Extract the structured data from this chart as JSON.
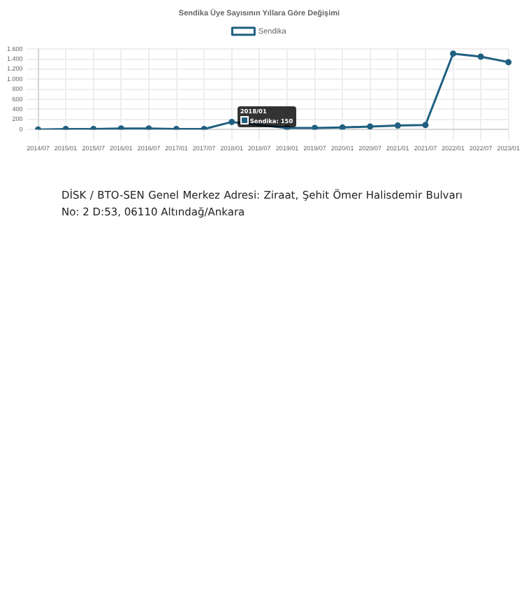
{
  "chart_data": {
    "type": "line",
    "title": "Sendika Üye Sayısının Yıllara Göre Değişimi",
    "categories": [
      "2014/07",
      "2015/01",
      "2015/07",
      "2016/01",
      "2016/07",
      "2017/01",
      "2017/07",
      "2018/01",
      "2018/07",
      "2019/01",
      "2019/07",
      "2020/01",
      "2020/07",
      "2021/01",
      "2021/07",
      "2022/01",
      "2022/07",
      "2023/01"
    ],
    "series": [
      {
        "name": "Sendika",
        "color": "#1f5f80",
        "values": [
          0,
          10,
          10,
          20,
          20,
          10,
          10,
          150,
          null,
          30,
          30,
          40,
          60,
          80,
          90,
          1510,
          1450,
          1340
        ]
      }
    ],
    "ylim": [
      0,
      1600
    ],
    "yticks": [
      0,
      200,
      400,
      600,
      800,
      {
        "value": 1000,
        "label": "1.000"
      },
      {
        "value": 1200,
        "label": "1.200"
      },
      {
        "value": 1400,
        "label": "1.400"
      },
      {
        "value": 1600,
        "label": "1.600"
      }
    ],
    "grid": true,
    "legend": "top",
    "marker": "circle",
    "annotations": [
      {
        "text": "2018/01",
        "x": "2018/01",
        "y": 150
      },
      "Sendika: 150",
      "DİSK / BTO-SEN Genel Merkez Adresi: Ziraat, Şehit Ömer Halisdemir Bulvarı No: 2 D:53, 06110 Altındağ/Ankara"
    ]
  }
}
